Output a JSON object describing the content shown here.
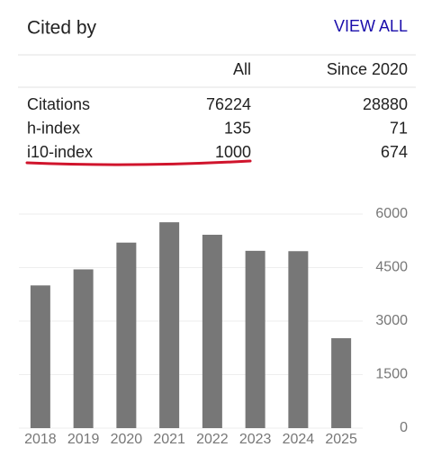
{
  "header": {
    "title": "Cited by",
    "link": "VIEW ALL"
  },
  "table": {
    "columns": [
      "All",
      "Since 2020"
    ],
    "rows": [
      [
        "Citations",
        76224,
        28880
      ],
      [
        "h-index",
        135,
        71
      ],
      [
        "i10-index",
        1000,
        674
      ]
    ]
  },
  "chart_data": {
    "type": "bar",
    "categories": [
      "2018",
      "2019",
      "2020",
      "2021",
      "2022",
      "2023",
      "2024",
      "2025"
    ],
    "values": [
      4000,
      4450,
      5200,
      5770,
      5420,
      4970,
      4960,
      2520
    ],
    "color": "#777777",
    "ylim": [
      0,
      6000
    ],
    "yticks": [
      0,
      1500,
      3000,
      4500,
      6000
    ],
    "grid": true
  }
}
